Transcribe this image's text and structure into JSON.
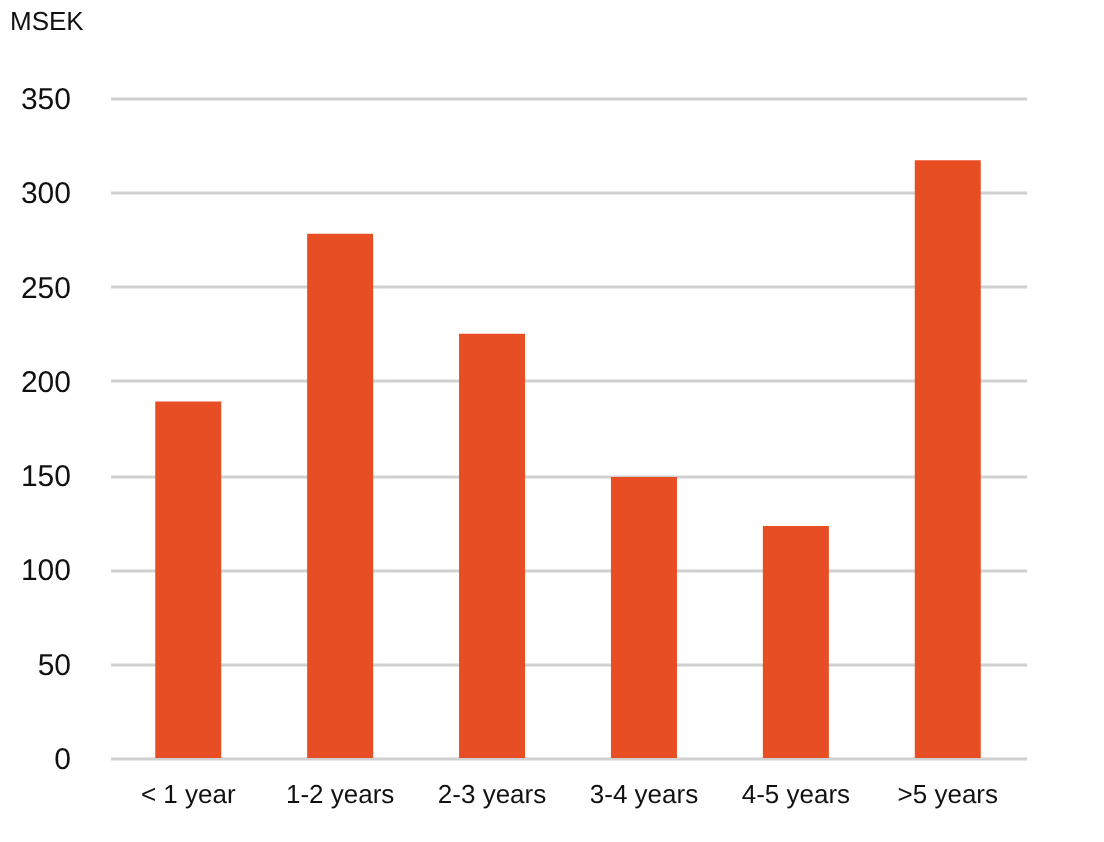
{
  "chart_data": {
    "type": "bar",
    "ylabel": "MSEK",
    "categories": [
      "< 1 year",
      "1-2 years",
      "2-3 years",
      "3-4 years",
      "4-5 years",
      ">5 years"
    ],
    "values": [
      189,
      278,
      225,
      149,
      123,
      317
    ],
    "color": "#e84e24",
    "ylim": [
      0,
      350
    ],
    "yticks": [
      0,
      50,
      100,
      150,
      200,
      250,
      300,
      350
    ],
    "grid": "y"
  }
}
